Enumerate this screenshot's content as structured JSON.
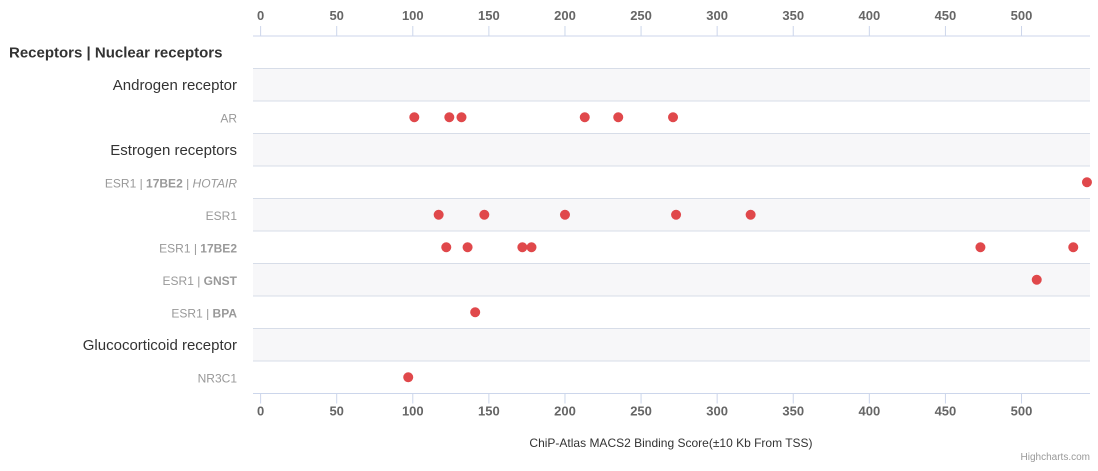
{
  "chart_data": {
    "type": "scatter",
    "x_axis": {
      "title": "ChiP-Atlas MACS2 Binding Score(±10 Kb From TSS)",
      "range": [
        -5,
        545
      ],
      "ticks": [
        0,
        50,
        100,
        150,
        200,
        250,
        300,
        350,
        400,
        450,
        500
      ],
      "tick_labels": [
        "0",
        "50",
        "100",
        "150",
        "200",
        "250",
        "300",
        "350",
        "400",
        "450",
        "500"
      ],
      "position": "top-and-bottom"
    },
    "rows": [
      {
        "kind": "header",
        "parts": [
          {
            "text": "Receptors | Nuclear receptors",
            "style": "bold"
          }
        ],
        "values": []
      },
      {
        "kind": "group",
        "parts": [
          {
            "text": "Androgen receptor",
            "style": "normal"
          }
        ],
        "values": []
      },
      {
        "kind": "sub",
        "parts": [
          {
            "text": "AR",
            "style": "normal"
          }
        ],
        "values": [
          101,
          124,
          132,
          213,
          235,
          271
        ]
      },
      {
        "kind": "group",
        "parts": [
          {
            "text": "Estrogen receptors",
            "style": "normal"
          }
        ],
        "values": []
      },
      {
        "kind": "sub",
        "parts": [
          {
            "text": "ESR1 | ",
            "style": "normal"
          },
          {
            "text": "17BE2",
            "style": "bold"
          },
          {
            "text": " | ",
            "style": "normal"
          },
          {
            "text": "HOTAIR",
            "style": "italic"
          }
        ],
        "values": [
          543
        ]
      },
      {
        "kind": "sub",
        "parts": [
          {
            "text": "ESR1",
            "style": "normal"
          }
        ],
        "values": [
          117,
          147,
          200,
          273,
          322
        ]
      },
      {
        "kind": "sub",
        "parts": [
          {
            "text": "ESR1 | ",
            "style": "normal"
          },
          {
            "text": "17BE2",
            "style": "bold"
          }
        ],
        "values": [
          122,
          136,
          172,
          178,
          473,
          534
        ]
      },
      {
        "kind": "sub",
        "parts": [
          {
            "text": "ESR1 | ",
            "style": "normal"
          },
          {
            "text": "GNST",
            "style": "bold"
          }
        ],
        "values": [
          510
        ]
      },
      {
        "kind": "sub",
        "parts": [
          {
            "text": "ESR1 | ",
            "style": "normal"
          },
          {
            "text": "BPA",
            "style": "bold"
          }
        ],
        "values": [
          141
        ]
      },
      {
        "kind": "group",
        "parts": [
          {
            "text": "Glucocorticoid receptor",
            "style": "normal"
          }
        ],
        "values": []
      },
      {
        "kind": "sub",
        "parts": [
          {
            "text": "NR3C1",
            "style": "normal"
          }
        ],
        "values": [
          97
        ]
      }
    ],
    "point_color": "#e0484b",
    "band_color": "#f7f7f9",
    "grid": true,
    "legend": "none"
  },
  "credits": "Highcharts.com"
}
